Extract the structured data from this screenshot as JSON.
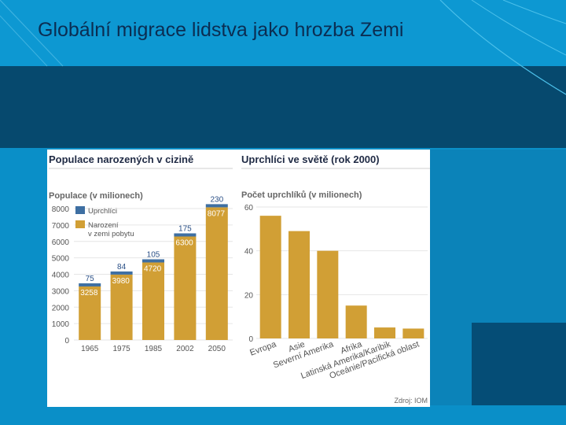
{
  "slide": {
    "title": "Globální migrace lidstva jako hrozba Zemi"
  },
  "colors": {
    "background": "#0a8fc8",
    "band": "#06496e",
    "bar_gold": "#d19f35",
    "bar_blue": "#3e6fa2",
    "title_text": "#0b2d52"
  },
  "source": "Zdroj: IOM",
  "chart_data": [
    {
      "type": "bar",
      "title": "Populace narozených v cizině",
      "ylabel": "Populace (v milionech)",
      "categories": [
        "1965",
        "1975",
        "1985",
        "2002",
        "2050"
      ],
      "ylim": [
        0,
        8000
      ],
      "yticks": [
        "0",
        "1000",
        "2000",
        "3000",
        "4000",
        "5000",
        "6000",
        "7000",
        "8000"
      ],
      "series": [
        {
          "name": "Narození v zemi pobytu",
          "values": [
            3258,
            3980,
            4720,
            6300,
            8077
          ],
          "labels": [
            "3258",
            "3980",
            "4720",
            "6300",
            "8077"
          ]
        },
        {
          "name": "Uprchlíci",
          "values": [
            75,
            84,
            105,
            175,
            230
          ],
          "labels": [
            "75",
            "84",
            "105",
            "175",
            "230"
          ]
        }
      ],
      "legend": [
        "Uprchlíci",
        "Narození\nv zemi pobytu"
      ],
      "legend_placement": "top-left"
    },
    {
      "type": "bar",
      "title": "Uprchlíci ve světě (rok 2000)",
      "ylabel": "Počet uprchlíků (v milionech)",
      "categories": [
        "Evropa",
        "Asie",
        "Severní Amerika",
        "Afrika",
        "Latinská Amerika/Karibik",
        "Oceánie/Pacifická oblast"
      ],
      "ylim": [
        0,
        60
      ],
      "yticks": [
        "0",
        "20",
        "40",
        "60"
      ],
      "series": [
        {
          "values": [
            56,
            49,
            40,
            15,
            5,
            4.5
          ]
        }
      ]
    }
  ]
}
